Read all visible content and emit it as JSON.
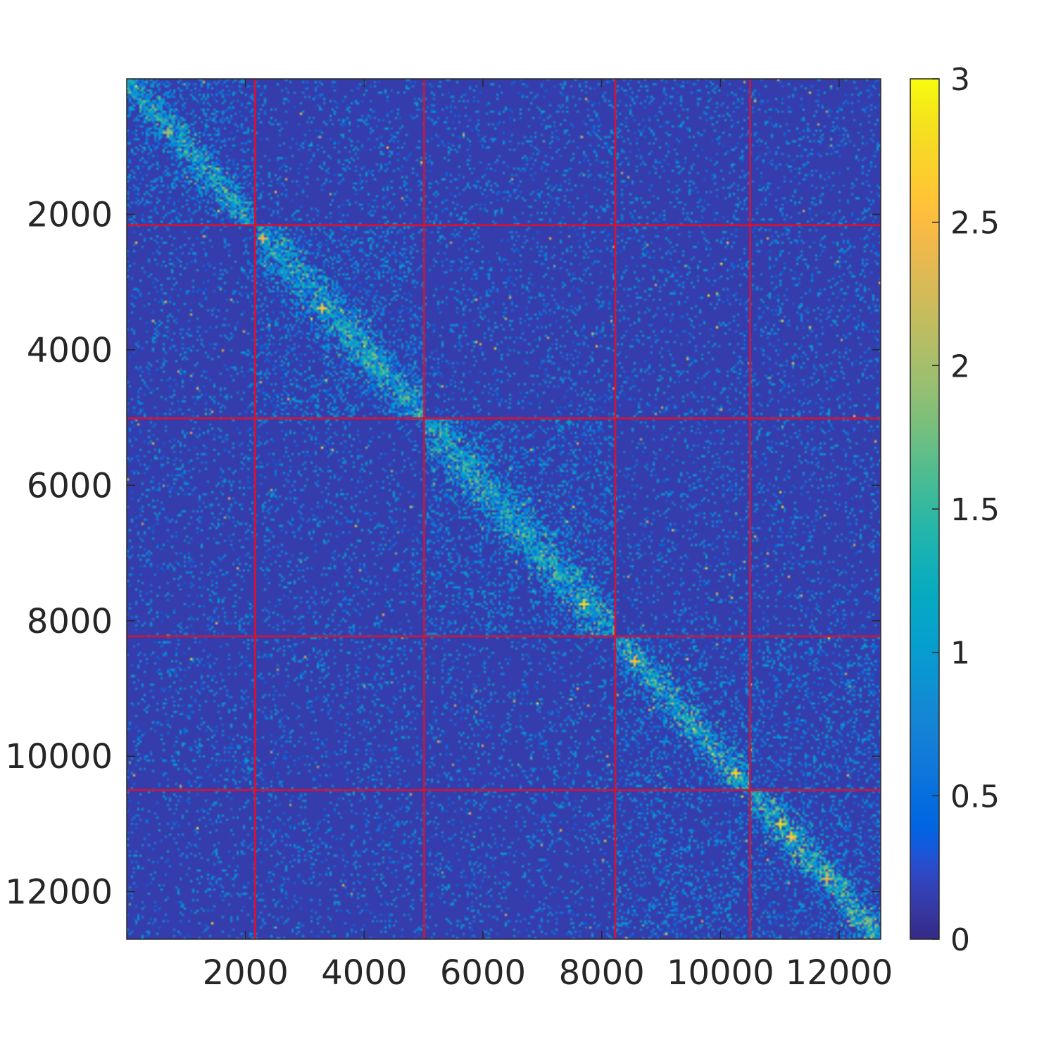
{
  "chart_data": {
    "type": "heatmap",
    "title": "",
    "xlabel": "",
    "ylabel": "",
    "matrix_size": 12700,
    "xlim": [
      0,
      12700
    ],
    "ylim": [
      0,
      12700
    ],
    "y_axis_direction": "top-to-bottom",
    "x_ticks": [
      2000,
      4000,
      6000,
      8000,
      10000,
      12000
    ],
    "x_tick_labels": [
      "2000",
      "4000",
      "6000",
      "8000",
      "10000",
      "12000"
    ],
    "y_ticks": [
      2000,
      4000,
      6000,
      8000,
      10000,
      12000
    ],
    "y_tick_labels": [
      "2000",
      "4000",
      "6000",
      "8000",
      "10000",
      "12000"
    ],
    "color_limits": [
      0,
      3
    ],
    "colormap": "parula",
    "colorbar": {
      "placement": "right",
      "ticks": [
        0,
        0.5,
        1,
        1.5,
        2,
        2.5,
        3
      ],
      "tick_labels": [
        "0",
        "0.5",
        "1",
        "1.5",
        "2",
        "2.5",
        "3"
      ]
    },
    "block_boundaries": [
      2160,
      5010,
      8230,
      10500
    ],
    "boundary_color": "#e0102a",
    "background_level": 0.12,
    "blocks": [
      {
        "start": 0,
        "end": 2160,
        "diagonal_level": 0.7
      },
      {
        "start": 2160,
        "end": 5010,
        "diagonal_level": 0.65
      },
      {
        "start": 5010,
        "end": 8230,
        "diagonal_level": 0.7
      },
      {
        "start": 8230,
        "end": 10500,
        "diagonal_level": 0.8
      },
      {
        "start": 10500,
        "end": 12700,
        "diagonal_level": 0.85
      }
    ],
    "bright_spots": [
      {
        "x": 700,
        "y": 800,
        "value": 2.0
      },
      {
        "x": 2300,
        "y": 2350,
        "value": 2.4
      },
      {
        "x": 3300,
        "y": 3400,
        "value": 2.6
      },
      {
        "x": 7700,
        "y": 7750,
        "value": 2.8
      },
      {
        "x": 8550,
        "y": 8600,
        "value": 2.5
      },
      {
        "x": 10250,
        "y": 10250,
        "value": 2.7
      },
      {
        "x": 11000,
        "y": 11000,
        "value": 2.8
      },
      {
        "x": 11200,
        "y": 11200,
        "value": 2.6
      },
      {
        "x": 11800,
        "y": 11800,
        "value": 2.4
      }
    ]
  }
}
